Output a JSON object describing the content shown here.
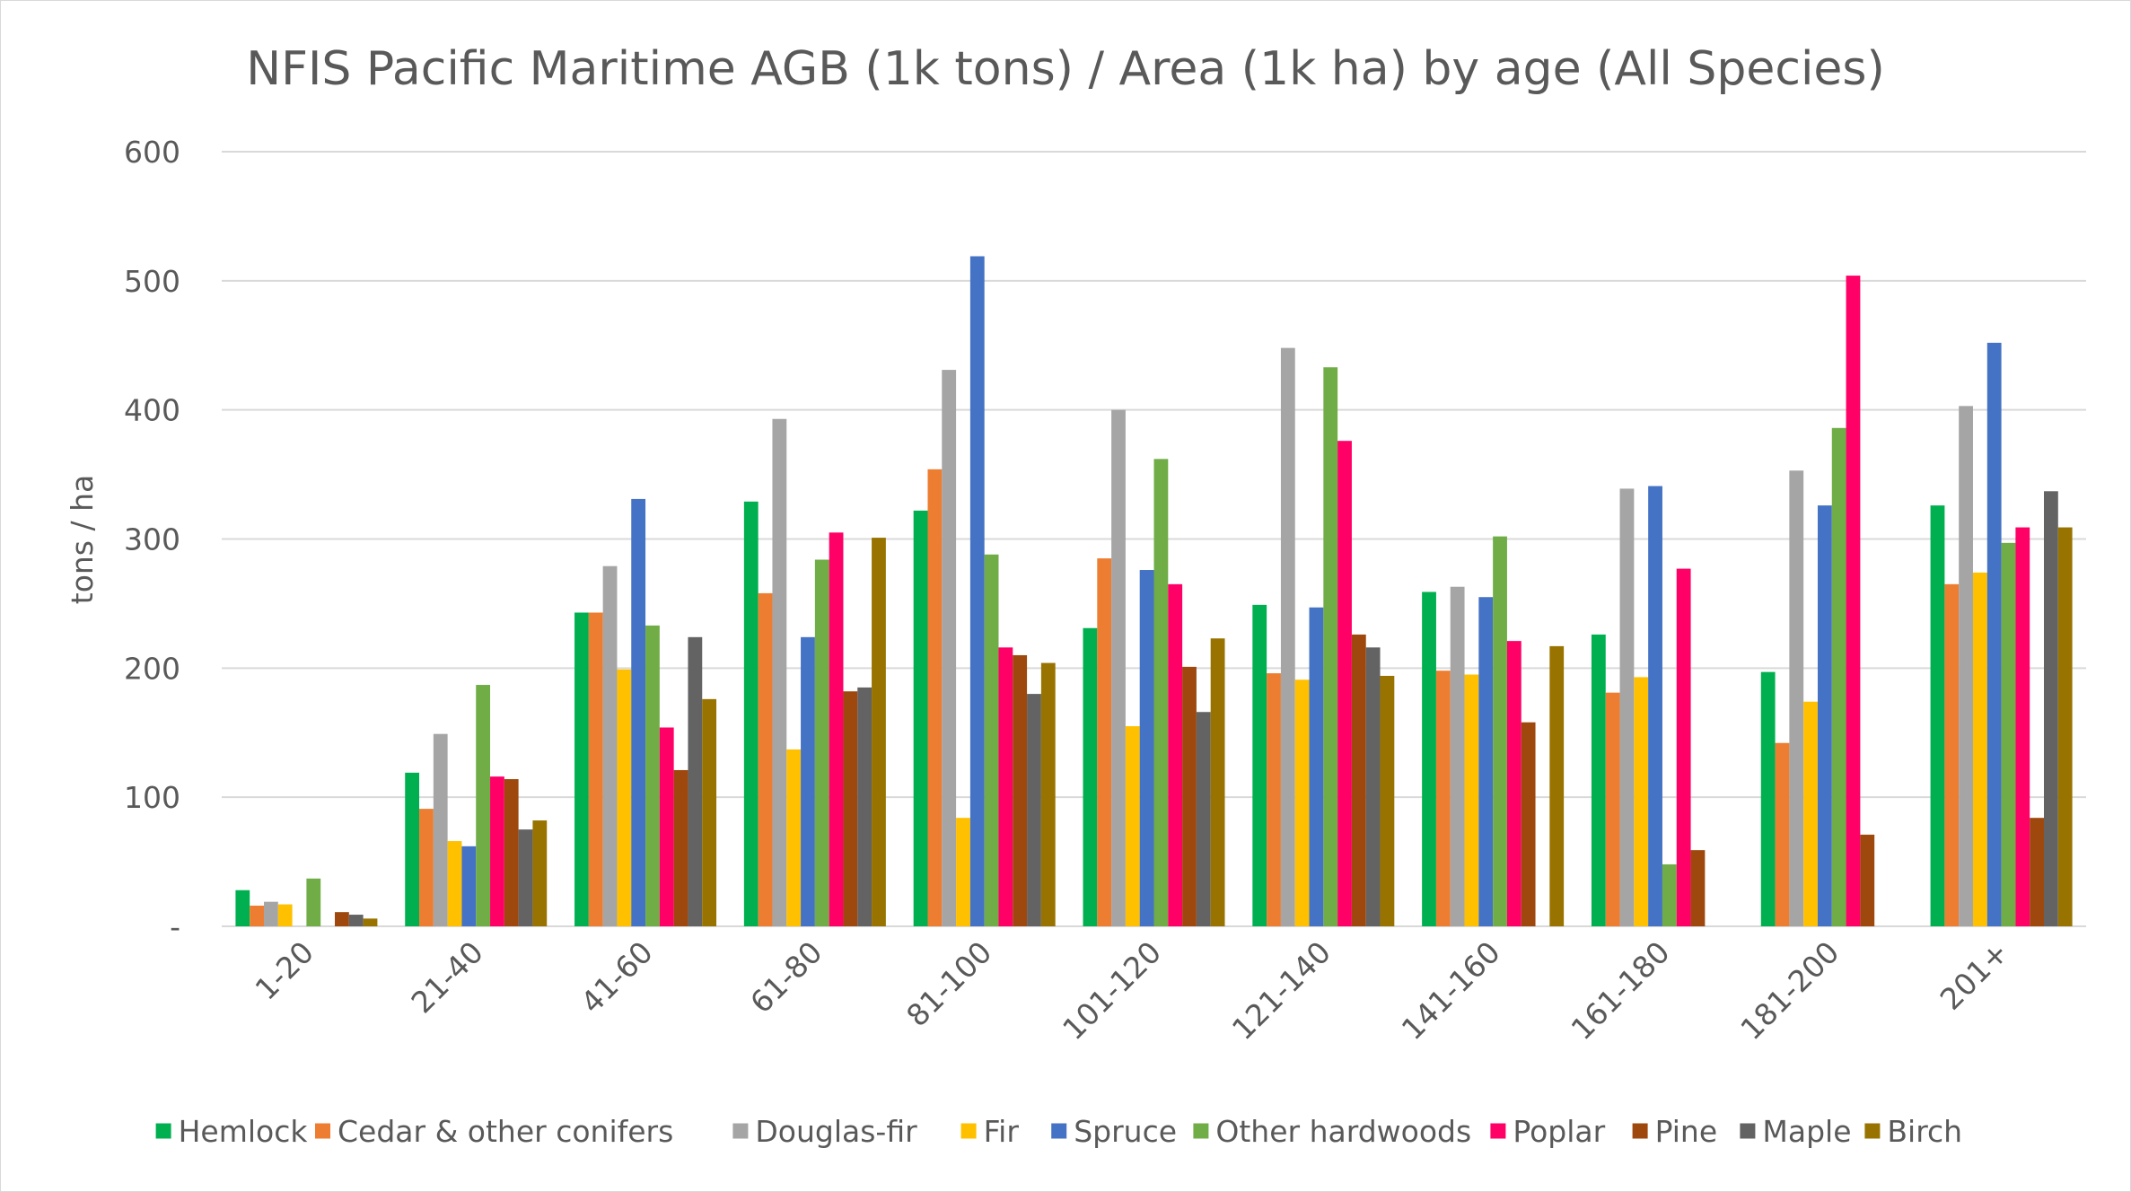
{
  "chart_data": {
    "type": "bar",
    "title": "NFIS Pacific Maritime AGB (1k tons) / Area (1k ha) by age (All Species)",
    "xlabel": "",
    "ylabel": "tons / ha",
    "ylim": [
      0,
      600
    ],
    "yticks": [
      {
        "value": 0,
        "label": "-"
      },
      {
        "value": 100,
        "label": "100"
      },
      {
        "value": 200,
        "label": "200"
      },
      {
        "value": 300,
        "label": "300"
      },
      {
        "value": 400,
        "label": "400"
      },
      {
        "value": 500,
        "label": "500"
      },
      {
        "value": 600,
        "label": "600"
      }
    ],
    "grid": true,
    "legend_position": "bottom",
    "categories": [
      "1-20",
      "21-40",
      "41-60",
      "61-80",
      "81-100",
      "101-120",
      "121-140",
      "141-160",
      "161-180",
      "181-200",
      "201+"
    ],
    "series": [
      {
        "name": "Hemlock",
        "color": "#00b050",
        "values": [
          28,
          119,
          243,
          329,
          322,
          231,
          249,
          259,
          226,
          197,
          326
        ]
      },
      {
        "name": "Cedar & other conifers",
        "color": "#ed7d31",
        "values": [
          16,
          91,
          243,
          258,
          354,
          285,
          196,
          198,
          181,
          142,
          265
        ]
      },
      {
        "name": "Douglas-fir",
        "color": "#a5a5a5",
        "values": [
          19,
          149,
          279,
          393,
          431,
          400,
          448,
          263,
          339,
          353,
          403
        ]
      },
      {
        "name": "Fir",
        "color": "#ffc000",
        "values": [
          17,
          66,
          199,
          137,
          84,
          155,
          191,
          195,
          193,
          174,
          274
        ]
      },
      {
        "name": "Spruce",
        "color": "#4472c4",
        "values": [
          0,
          62,
          331,
          224,
          519,
          276,
          247,
          255,
          341,
          326,
          452
        ]
      },
      {
        "name": "Other hardwoods",
        "color": "#70ad47",
        "values": [
          37,
          187,
          233,
          284,
          288,
          362,
          433,
          302,
          48,
          386,
          297
        ]
      },
      {
        "name": "Poplar",
        "color": "#ff0066",
        "values": [
          0,
          116,
          154,
          305,
          216,
          265,
          376,
          221,
          277,
          504,
          309
        ]
      },
      {
        "name": "Pine",
        "color": "#9e480e",
        "values": [
          11,
          114,
          121,
          182,
          210,
          201,
          226,
          158,
          59,
          71,
          84
        ]
      },
      {
        "name": "Maple",
        "color": "#636363",
        "values": [
          9,
          75,
          224,
          185,
          180,
          166,
          216,
          0,
          0,
          0,
          337
        ]
      },
      {
        "name": "Birch",
        "color": "#997300",
        "values": [
          6,
          82,
          176,
          301,
          204,
          223,
          194,
          217,
          0,
          0,
          309
        ]
      }
    ]
  }
}
